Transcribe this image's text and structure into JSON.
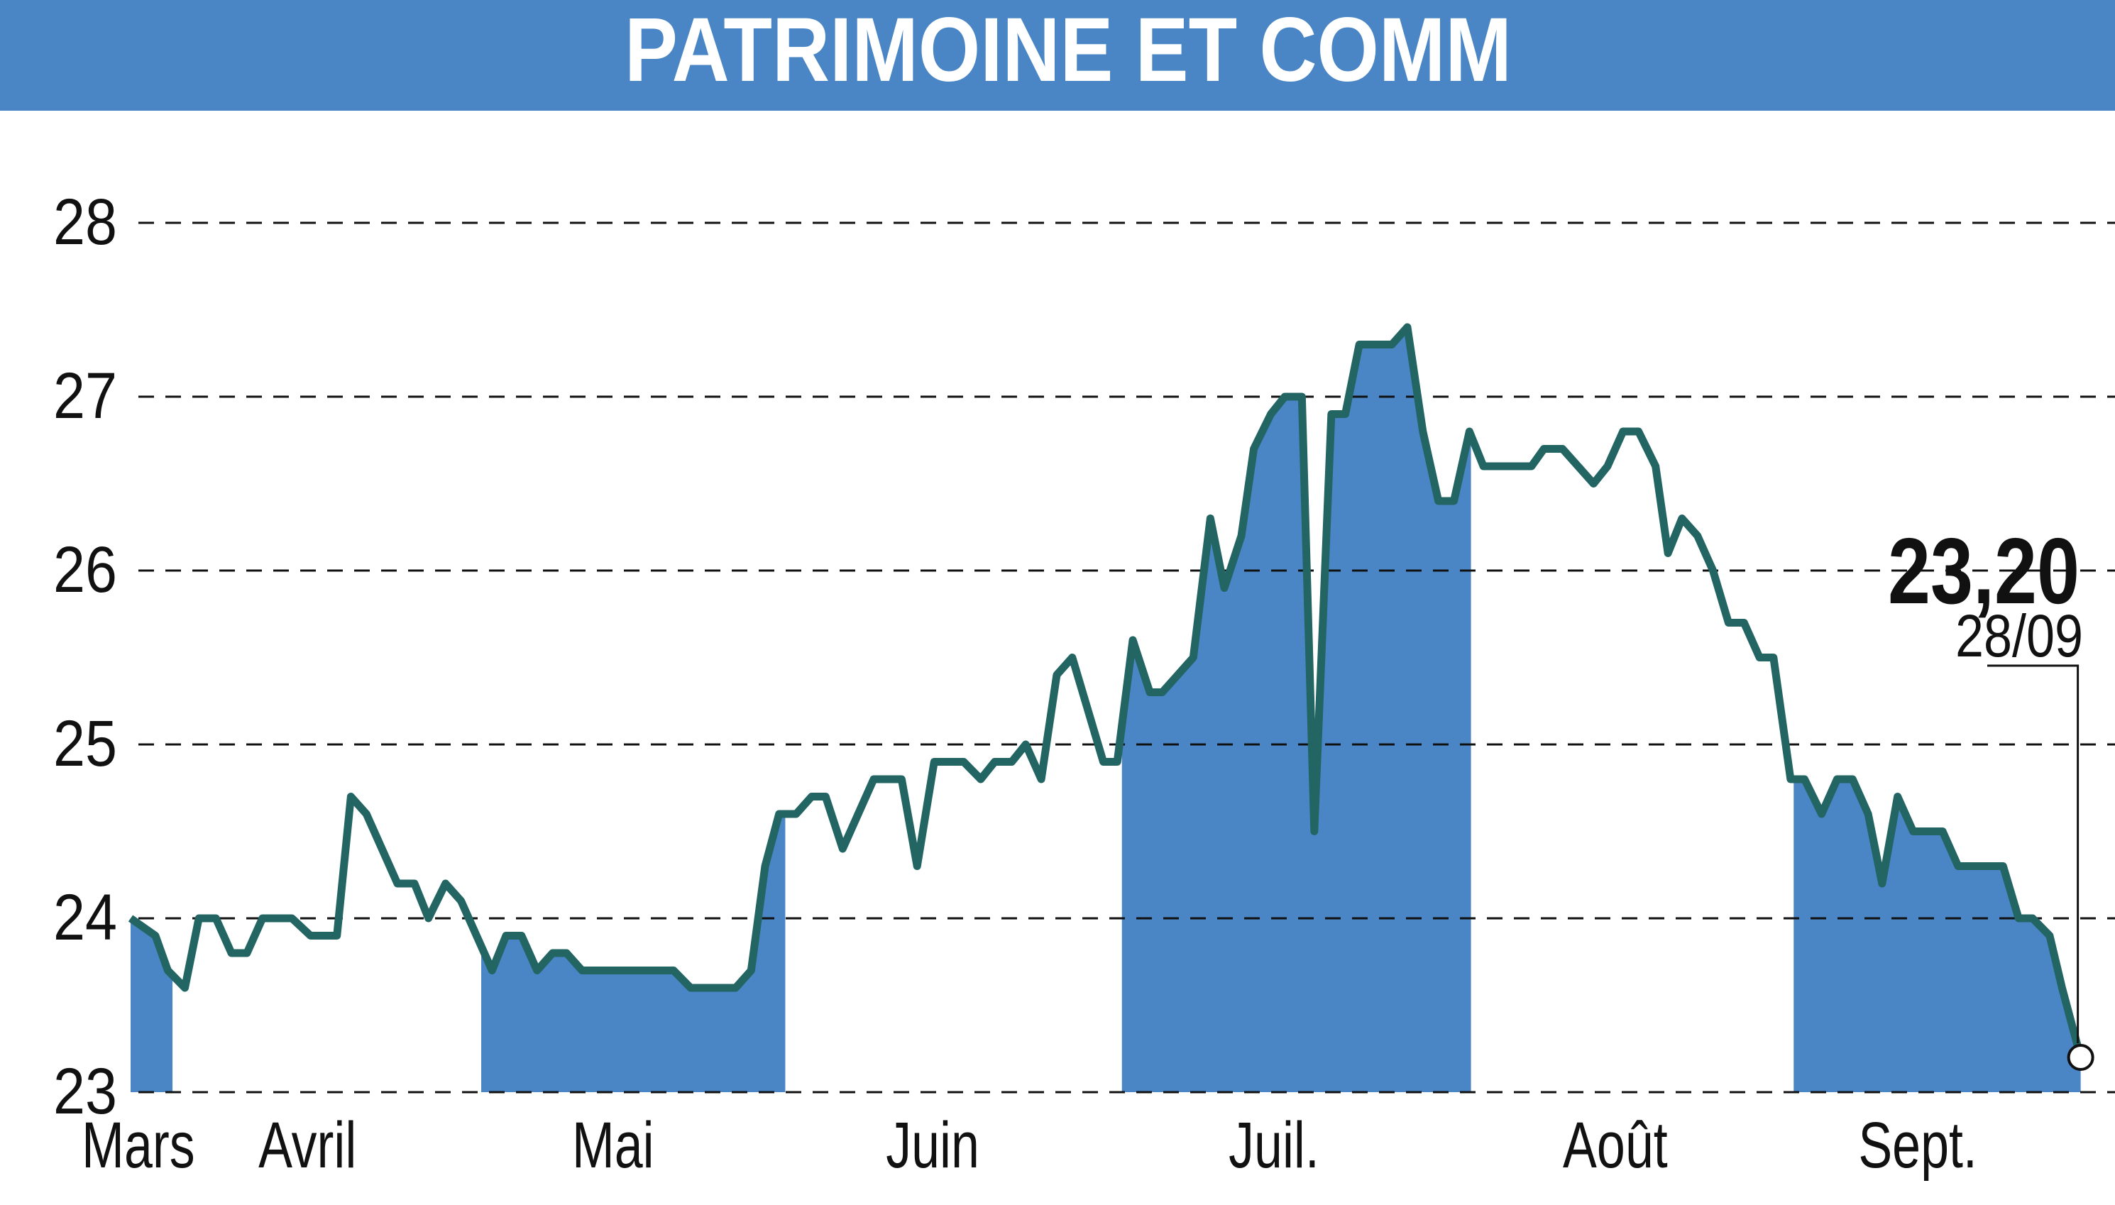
{
  "chart_data": {
    "type": "line",
    "title": "PATRIMOINE ET COMM",
    "color": "#226563",
    "band_color": "#4a86c5",
    "grid": true,
    "ylim": [
      23,
      28
    ],
    "yticks": [
      23,
      24,
      25,
      26,
      27,
      28
    ],
    "xlim": [
      0,
      125.9
    ],
    "xticks": [
      {
        "value": 0.5,
        "label": "Mars"
      },
      {
        "value": 11.4,
        "label": "Avril"
      },
      {
        "value": 31.1,
        "label": "Mai"
      },
      {
        "value": 51.7,
        "label": "Juin"
      },
      {
        "value": 73.7,
        "label": "Juil."
      },
      {
        "value": 95.7,
        "label": "Août"
      },
      {
        "value": 115.2,
        "label": "Sept."
      }
    ],
    "bands": [
      [
        0,
        2.7
      ],
      [
        22.6,
        42.2
      ],
      [
        63.9,
        86.4
      ],
      [
        107.2,
        125.9
      ]
    ],
    "x": [
      0,
      1.6,
      2.4,
      3.5,
      4.4,
      5.5,
      6.5,
      7.5,
      8.5,
      10.4,
      11.6,
      13.3,
      14.2,
      15.2,
      17.2,
      18.3,
      19.2,
      20.3,
      21.3,
      23.3,
      24.2,
      25.2,
      26.2,
      27.2,
      28.1,
      29.1,
      35.0,
      36.1,
      39.0,
      40.0,
      40.9,
      41.8,
      42.9,
      43.9,
      44.8,
      45.9,
      47.9,
      49.7,
      50.7,
      51.8,
      53.7,
      54.8,
      55.7,
      56.8,
      57.7,
      58.7,
      59.7,
      60.7,
      62.7,
      63.6,
      64.6,
      65.7,
      66.5,
      68.5,
      69.6,
      70.5,
      71.6,
      72.4,
      73.5,
      74.4,
      75.5,
      76.3,
      77.4,
      78.3,
      79.2,
      81.3,
      82.3,
      83.3,
      84.3,
      85.3,
      86.3,
      87.2,
      90.3,
      91.1,
      92.3,
      94.3,
      95.2,
      96.2,
      97.2,
      98.3,
      99.1,
      100.0,
      101.0,
      102.0,
      103.0,
      104.0,
      105.0,
      105.9,
      107.0,
      107.9,
      109.0,
      110.0,
      111.0,
      112.0,
      112.9,
      113.9,
      114.9,
      116.8,
      117.8,
      120.7,
      121.7,
      122.6,
      123.7,
      124.5,
      125.7
    ],
    "values": [
      24.0,
      23.9,
      23.7,
      23.6,
      24.0,
      24.0,
      23.8,
      23.8,
      24.0,
      24.0,
      23.9,
      23.9,
      24.7,
      24.6,
      24.2,
      24.2,
      24.0,
      24.2,
      24.1,
      23.7,
      23.9,
      23.9,
      23.7,
      23.8,
      23.8,
      23.7,
      23.7,
      23.6,
      23.6,
      23.7,
      24.3,
      24.6,
      24.6,
      24.7,
      24.7,
      24.4,
      24.8,
      24.8,
      24.3,
      24.9,
      24.9,
      24.8,
      24.9,
      24.9,
      25.0,
      24.8,
      25.4,
      25.5,
      24.9,
      24.9,
      25.6,
      25.3,
      25.3,
      25.5,
      26.3,
      25.9,
      26.2,
      26.7,
      26.9,
      27.0,
      27.0,
      24.5,
      26.9,
      26.9,
      27.3,
      27.3,
      27.4,
      26.8,
      26.4,
      26.4,
      26.8,
      26.6,
      26.6,
      26.7,
      26.7,
      26.5,
      26.6,
      26.8,
      26.8,
      26.6,
      26.1,
      26.3,
      26.2,
      26.0,
      25.7,
      25.7,
      25.5,
      25.5,
      24.8,
      24.8,
      24.6,
      24.8,
      24.8,
      24.6,
      24.2,
      24.7,
      24.5,
      24.5,
      24.3,
      24.3,
      24.0,
      24.0,
      23.9,
      23.6,
      23.2
    ],
    "last_label": {
      "value": 23.2,
      "label": "23,20"
    },
    "last_date": "28/09"
  }
}
